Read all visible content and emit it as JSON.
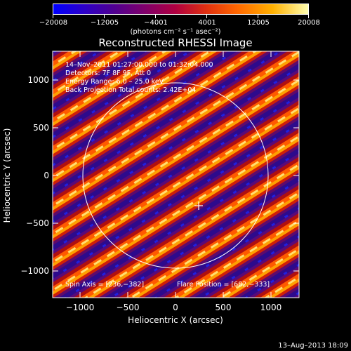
{
  "colorbar": {
    "tick_labels": [
      "−20008",
      "−12005",
      "−4001",
      "4001",
      "12005",
      "20008"
    ],
    "units": "(photons cm⁻² s⁻¹ asec⁻²)"
  },
  "plot": {
    "title": "Reconstructed RHESSI Image",
    "x_title": "Heliocentric X (arcsec)",
    "y_title": "Heliocentric Y (arcsec)",
    "x_ticks": [
      "−1000",
      "−500",
      "0",
      "500",
      "1000"
    ],
    "y_ticks": [
      "1000",
      "500",
      "0",
      "−500",
      "−1000"
    ],
    "annotations": {
      "line1": "14–Nov–2011 01:27:00.000 to 01:32:04.000",
      "line2": "Detectors: 7F 8F 9F, Att 0",
      "line3": "Energy Range: 6.0 – 25.0 keV",
      "line4": "Back Projection    Total counts: 2.42E+04",
      "spin_axis": "Spin Axis = [236,−382]",
      "flare_position": "Flare Position = [682,−333]"
    }
  },
  "footer": {
    "date": "13–Aug–2013 18:09"
  }
}
